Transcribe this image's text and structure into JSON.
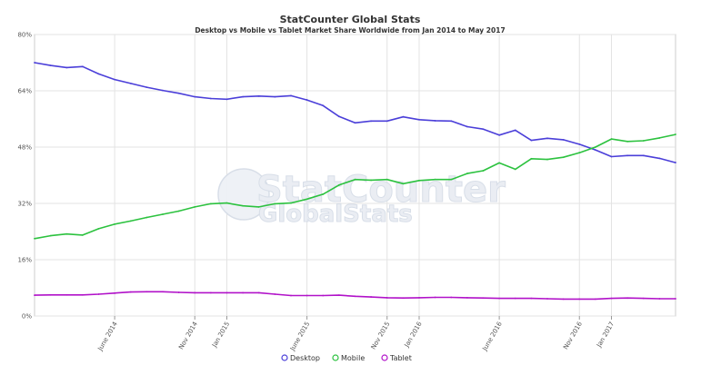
{
  "chart_data": {
    "type": "line",
    "title": "StatCounter Global Stats",
    "subtitle": "Desktop vs Mobile vs Tablet Market Share Worldwide from Jan 2014 to May 2017",
    "watermark": [
      "StatCounter",
      "GlobalStats"
    ],
    "xlabel": "",
    "ylabel": "",
    "ylim": [
      0,
      80
    ],
    "y_ticks": [
      "0%",
      "16%",
      "32%",
      "48%",
      "64%",
      "80%"
    ],
    "x": [
      "2014-01",
      "2014-02",
      "2014-03",
      "2014-04",
      "2014-05",
      "2014-06",
      "2014-07",
      "2014-08",
      "2014-09",
      "2014-10",
      "2014-11",
      "2014-12",
      "2015-01",
      "2015-02",
      "2015-03",
      "2015-04",
      "2015-05",
      "2015-06",
      "2015-07",
      "2015-08",
      "2015-09",
      "2015-10",
      "2015-11",
      "2015-12",
      "2016-01",
      "2016-02",
      "2016-03",
      "2016-04",
      "2016-05",
      "2016-06",
      "2016-07",
      "2016-08",
      "2016-09",
      "2016-10",
      "2016-11",
      "2016-12",
      "2017-01",
      "2017-02",
      "2017-03",
      "2017-04",
      "2017-05"
    ],
    "x_tick_labels": [
      {
        "label": "June 2014",
        "month": "2014-06"
      },
      {
        "label": "Nov 2014",
        "month": "2014-11"
      },
      {
        "label": "Jan 2015",
        "month": "2015-01"
      },
      {
        "label": "June 2015",
        "month": "2015-06"
      },
      {
        "label": "Nov 2015",
        "month": "2015-11"
      },
      {
        "label": "Jan 2016",
        "month": "2016-01"
      },
      {
        "label": "June 2016",
        "month": "2016-06"
      },
      {
        "label": "Nov 2016",
        "month": "2016-11"
      },
      {
        "label": "Jan 2017",
        "month": "2017-01"
      }
    ],
    "grid": true,
    "legend_position": "bottom-center",
    "series": [
      {
        "name": "Desktop",
        "color": "#4b3fd9",
        "values": [
          72.0,
          71.2,
          70.6,
          70.9,
          68.8,
          67.2,
          66.1,
          65.0,
          64.1,
          63.3,
          62.3,
          61.8,
          61.6,
          62.3,
          62.5,
          62.3,
          62.6,
          61.4,
          59.8,
          56.7,
          54.9,
          55.4,
          55.4,
          56.6,
          55.8,
          55.5,
          55.4,
          53.8,
          53.1,
          51.4,
          52.8,
          49.9,
          50.5,
          50.1,
          48.8,
          47.2,
          45.3,
          45.6,
          45.6,
          44.8,
          43.6
        ]
      },
      {
        "name": "Mobile",
        "color": "#2cc23f",
        "values": [
          22.0,
          22.8,
          23.3,
          23.0,
          24.8,
          26.1,
          27.0,
          28.0,
          28.9,
          29.8,
          31.0,
          31.9,
          32.1,
          31.3,
          31.0,
          31.9,
          32.1,
          33.2,
          34.6,
          37.2,
          38.8,
          38.6,
          38.8,
          37.6,
          38.5,
          38.8,
          38.8,
          40.5,
          41.3,
          43.5,
          41.7,
          44.7,
          44.5,
          45.1,
          46.4,
          48.0,
          50.3,
          49.6,
          49.8,
          50.6,
          51.6
        ]
      },
      {
        "name": "Tablet",
        "color": "#b112c9",
        "values": [
          5.9,
          6.0,
          6.0,
          6.0,
          6.2,
          6.5,
          6.8,
          6.9,
          6.9,
          6.7,
          6.6,
          6.6,
          6.6,
          6.6,
          6.6,
          6.2,
          5.8,
          5.8,
          5.8,
          5.9,
          5.6,
          5.4,
          5.2,
          5.1,
          5.2,
          5.3,
          5.3,
          5.2,
          5.1,
          5.0,
          5.0,
          5.0,
          4.9,
          4.8,
          4.8,
          4.8,
          5.0,
          5.1,
          5.0,
          4.9,
          4.9
        ]
      }
    ]
  }
}
